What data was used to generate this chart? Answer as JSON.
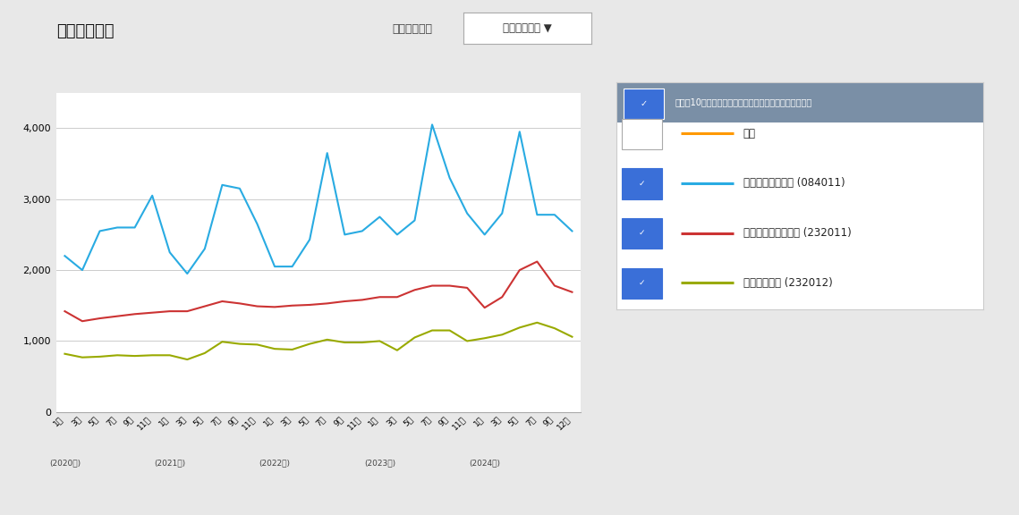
{
  "title": "販売動向比較",
  "subtitle_label": "折れ線グラフ",
  "dropdown_label": "千人当り金額 ▼",
  "bg_color": "#ffffff",
  "outer_bg": "#e8e8e8",
  "plot_bg_color": "#ffffff",
  "grid_color": "#cccccc",
  "legend_header": "最大で10個まで選択できます（無選択にはできません）",
  "legend_header_bg": "#7a8fa6",
  "legend_items": [
    {
      "label": "合計",
      "color": "#ff9900",
      "checked": false
    },
    {
      "label": "栄養補給ドリンク (084011)",
      "color": "#29abe2",
      "checked": true
    },
    {
      "label": "栄養補給錠剤・錠菓 (232011)",
      "color": "#cc3333",
      "checked": true
    },
    {
      "label": "栄養補給菓子 (232012)",
      "color": "#99aa00",
      "checked": true
    }
  ],
  "ylim": [
    0,
    4500
  ],
  "yticks": [
    0,
    1000,
    2000,
    3000,
    4000
  ],
  "x_tick_months": [
    "1月",
    "3月",
    "5月",
    "7月",
    "9月",
    "11月",
    "1月",
    "3月",
    "5月",
    "7月",
    "9月",
    "11月",
    "1月",
    "3月",
    "5月",
    "7月",
    "9月",
    "11月",
    "1月",
    "3月",
    "5月",
    "7月",
    "9月",
    "11月",
    "1月",
    "3月",
    "5月",
    "7月",
    "9月",
    "12月"
  ],
  "x_year_positions": [
    0,
    6,
    12,
    18,
    24
  ],
  "x_year_labels": [
    "(2020年)",
    "(2021年)",
    "(2022年)",
    "(2023年)",
    "(2024年)"
  ],
  "series_blue": [
    2200,
    2000,
    2550,
    2600,
    2600,
    3050,
    2250,
    1950,
    2300,
    3200,
    3150,
    2650,
    2050,
    2050,
    2430,
    3650,
    2500,
    2550,
    2750,
    2500,
    2700,
    4050,
    3300,
    2800,
    2500,
    2800,
    3950,
    2780,
    2780,
    2550
  ],
  "series_red": [
    1420,
    1280,
    1320,
    1350,
    1380,
    1400,
    1420,
    1420,
    1490,
    1560,
    1530,
    1490,
    1480,
    1500,
    1510,
    1530,
    1560,
    1580,
    1620,
    1620,
    1720,
    1780,
    1780,
    1750,
    1470,
    1620,
    2000,
    2120,
    1780,
    1690
  ],
  "series_green": [
    820,
    770,
    780,
    800,
    790,
    800,
    800,
    740,
    830,
    990,
    960,
    950,
    890,
    880,
    960,
    1020,
    980,
    980,
    1000,
    870,
    1050,
    1150,
    1150,
    1000,
    1040,
    1090,
    1190,
    1260,
    1180,
    1060
  ]
}
